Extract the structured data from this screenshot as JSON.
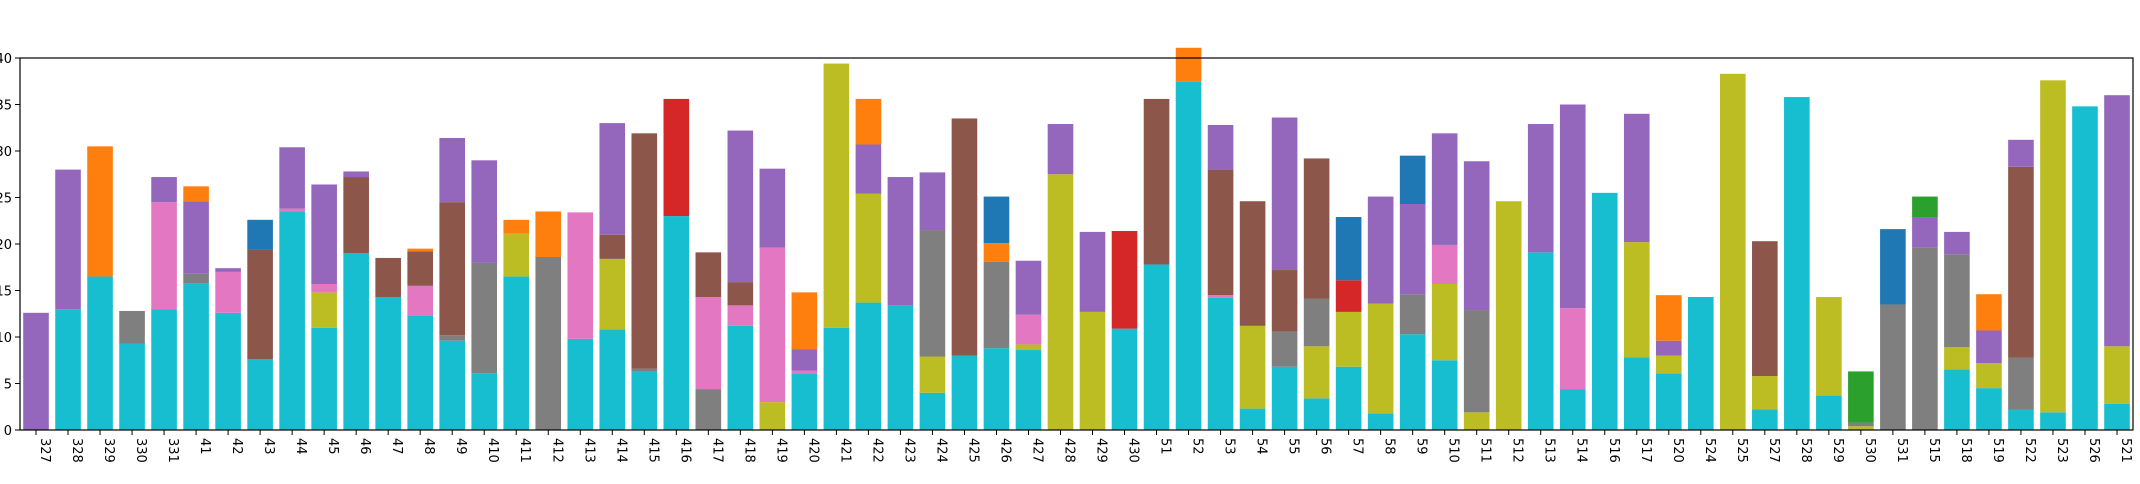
{
  "chart_data": {
    "type": "bar",
    "stacked": true,
    "title": "",
    "xlabel": "",
    "ylabel": "",
    "ylim": [
      0,
      40
    ],
    "yticks": [
      0,
      5,
      10,
      15,
      20,
      25,
      30,
      35,
      40
    ],
    "grid": false,
    "legend": "none",
    "colors": [
      "#17becf",
      "#bcbd22",
      "#7f7f7f",
      "#e377c2",
      "#8c564b",
      "#9467bd",
      "#d62728",
      "#2ca02c",
      "#ff7f0e",
      "#1f77b4"
    ],
    "categories": [
      "327",
      "328",
      "329",
      "330",
      "331",
      "41",
      "42",
      "43",
      "44",
      "45",
      "46",
      "47",
      "48",
      "49",
      "410",
      "411",
      "412",
      "413",
      "414",
      "415",
      "416",
      "417",
      "418",
      "419",
      "420",
      "421",
      "422",
      "423",
      "424",
      "425",
      "426",
      "427",
      "428",
      "429",
      "430",
      "51",
      "52",
      "53",
      "54",
      "55",
      "56",
      "57",
      "58",
      "59",
      "510",
      "511",
      "512",
      "513",
      "514",
      "516",
      "517",
      "520",
      "524",
      "525",
      "527",
      "528",
      "529",
      "530",
      "531",
      "515",
      "518",
      "519",
      "522",
      "523",
      "526",
      "521"
    ],
    "stacks": [
      [
        [
          5,
          12.6
        ]
      ],
      [
        [
          0,
          13
        ],
        [
          5,
          15
        ]
      ],
      [
        [
          0,
          16.5
        ],
        [
          8,
          14
        ]
      ],
      [
        [
          0,
          9.3
        ],
        [
          2,
          3.5
        ]
      ],
      [
        [
          0,
          13
        ],
        [
          3,
          11.5
        ],
        [
          5,
          2.7
        ]
      ],
      [
        [
          0,
          15.8
        ],
        [
          2,
          1
        ],
        [
          5,
          7.8
        ],
        [
          8,
          1.6
        ]
      ],
      [
        [
          0,
          12.6
        ],
        [
          3,
          4.4
        ],
        [
          5,
          0.4
        ]
      ],
      [
        [
          0,
          7.6
        ],
        [
          4,
          11.8
        ],
        [
          9,
          3.2
        ]
      ],
      [
        [
          0,
          23.5
        ],
        [
          3,
          0.3
        ],
        [
          5,
          6.6
        ]
      ],
      [
        [
          0,
          11
        ],
        [
          1,
          3.8
        ],
        [
          3,
          0.9
        ],
        [
          5,
          10.7
        ]
      ],
      [
        [
          0,
          19
        ],
        [
          4,
          8.2
        ],
        [
          5,
          0.6
        ]
      ],
      [
        [
          0,
          14.3
        ],
        [
          4,
          4.2
        ]
      ],
      [
        [
          0,
          12.3
        ],
        [
          3,
          3.2
        ],
        [
          4,
          3.7
        ],
        [
          8,
          0.3
        ]
      ],
      [
        [
          0,
          9.6
        ],
        [
          2,
          0.6
        ],
        [
          4,
          14.3
        ],
        [
          5,
          6.9
        ]
      ],
      [
        [
          0,
          6.1
        ],
        [
          2,
          11.9
        ],
        [
          5,
          11
        ]
      ],
      [
        [
          0,
          16.5
        ],
        [
          1,
          4.6
        ],
        [
          8,
          1.5
        ]
      ],
      [
        [
          2,
          18.6
        ],
        [
          8,
          4.9
        ]
      ],
      [
        [
          0,
          9.8
        ],
        [
          3,
          13.6
        ]
      ],
      [
        [
          0,
          10.8
        ],
        [
          1,
          7.6
        ],
        [
          4,
          2.6
        ],
        [
          5,
          12
        ]
      ],
      [
        [
          0,
          6.3
        ],
        [
          2,
          0.3
        ],
        [
          4,
          25.3
        ]
      ],
      [
        [
          0,
          23
        ],
        [
          6,
          12.6
        ]
      ],
      [
        [
          2,
          4.4
        ],
        [
          3,
          9.9
        ],
        [
          4,
          4.8
        ]
      ],
      [
        [
          0,
          11.2
        ],
        [
          3,
          2.2
        ],
        [
          4,
          2.5
        ],
        [
          5,
          16.3
        ]
      ],
      [
        [
          1,
          3
        ],
        [
          3,
          16.6
        ],
        [
          5,
          8.5
        ]
      ],
      [
        [
          0,
          6.1
        ],
        [
          3,
          0.3
        ],
        [
          5,
          2.3
        ],
        [
          8,
          6.1
        ]
      ],
      [
        [
          0,
          11
        ],
        [
          1,
          28.4
        ]
      ],
      [
        [
          0,
          13.7
        ],
        [
          1,
          11.7
        ],
        [
          5,
          5.3
        ],
        [
          8,
          4.9
        ]
      ],
      [
        [
          0,
          13.4
        ],
        [
          5,
          13.8
        ]
      ],
      [
        [
          0,
          4
        ],
        [
          1,
          3.9
        ],
        [
          2,
          13.6
        ],
        [
          5,
          6.2
        ]
      ],
      [
        [
          0,
          8
        ],
        [
          4,
          25.5
        ]
      ],
      [
        [
          0,
          8.8
        ],
        [
          2,
          9.3
        ],
        [
          8,
          2
        ],
        [
          9,
          5
        ]
      ],
      [
        [
          0,
          8.6
        ],
        [
          1,
          0.6
        ],
        [
          3,
          3.2
        ],
        [
          5,
          5.8
        ]
      ],
      [
        [
          1,
          27.5
        ],
        [
          5,
          5.4
        ]
      ],
      [
        [
          1,
          12.7
        ],
        [
          5,
          8.6
        ]
      ],
      [
        [
          0,
          10.9
        ],
        [
          6,
          10.5
        ]
      ],
      [
        [
          0,
          17.8
        ],
        [
          4,
          17.8
        ]
      ],
      [
        [
          0,
          37.5
        ],
        [
          8,
          3.6
        ]
      ],
      [
        [
          0,
          14.2
        ],
        [
          3,
          0.3
        ],
        [
          4,
          13.5
        ],
        [
          5,
          4.8
        ]
      ],
      [
        [
          0,
          2.3
        ],
        [
          1,
          8.9
        ],
        [
          4,
          13.4
        ]
      ],
      [
        [
          0,
          6.8
        ],
        [
          2,
          3.8
        ],
        [
          4,
          6.6
        ],
        [
          5,
          16.4
        ]
      ],
      [
        [
          0,
          3.4
        ],
        [
          1,
          5.6
        ],
        [
          2,
          5.1
        ],
        [
          4,
          15.1
        ]
      ],
      [
        [
          0,
          6.8
        ],
        [
          1,
          5.9
        ],
        [
          6,
          3.4
        ],
        [
          9,
          6.8
        ]
      ],
      [
        [
          0,
          1.8
        ],
        [
          1,
          11.8
        ],
        [
          5,
          11.5
        ]
      ],
      [
        [
          0,
          10.3
        ],
        [
          2,
          4.3
        ],
        [
          5,
          9.7
        ],
        [
          9,
          5.2
        ]
      ],
      [
        [
          0,
          7.5
        ],
        [
          1,
          8.2
        ],
        [
          3,
          4.2
        ],
        [
          5,
          12
        ]
      ],
      [
        [
          1,
          1.9
        ],
        [
          2,
          11
        ],
        [
          5,
          16
        ]
      ],
      [
        [
          1,
          24.6
        ]
      ],
      [
        [
          0,
          19.1
        ],
        [
          5,
          13.8
        ]
      ],
      [
        [
          0,
          4.4
        ],
        [
          3,
          8.7
        ],
        [
          5,
          21.9
        ]
      ],
      [
        [
          0,
          25.5
        ]
      ],
      [
        [
          0,
          7.8
        ],
        [
          1,
          12.4
        ],
        [
          5,
          13.8
        ]
      ],
      [
        [
          0,
          6.1
        ],
        [
          1,
          1.9
        ],
        [
          5,
          1.6
        ],
        [
          8,
          4.9
        ]
      ],
      [
        [
          0,
          14.3
        ]
      ],
      [
        [
          1,
          38.3
        ]
      ],
      [
        [
          0,
          2.2
        ],
        [
          1,
          3.6
        ],
        [
          4,
          14.5
        ]
      ],
      [
        [
          0,
          35.8
        ]
      ],
      [
        [
          0,
          3.7
        ],
        [
          1,
          10.6
        ]
      ],
      [
        [
          1,
          0.4
        ],
        [
          2,
          0.4
        ],
        [
          7,
          5.5
        ]
      ],
      [
        [
          2,
          13.5
        ],
        [
          9,
          8.1
        ]
      ],
      [
        [
          2,
          19.6
        ],
        [
          5,
          3.3
        ],
        [
          7,
          2.2
        ]
      ],
      [
        [
          0,
          6.5
        ],
        [
          1,
          2.4
        ],
        [
          2,
          10
        ],
        [
          5,
          2.4
        ]
      ],
      [
        [
          0,
          4.5
        ],
        [
          1,
          2.7
        ],
        [
          5,
          3.5
        ],
        [
          8,
          3.9
        ]
      ],
      [
        [
          0,
          2.2
        ],
        [
          2,
          5.6
        ],
        [
          4,
          20.5
        ],
        [
          5,
          2.9
        ]
      ],
      [
        [
          0,
          1.9
        ],
        [
          1,
          35.7
        ]
      ],
      [
        [
          0,
          34.8
        ]
      ],
      [
        [
          0,
          2.8
        ],
        [
          1,
          6.2
        ],
        [
          5,
          27
        ]
      ]
    ]
  }
}
